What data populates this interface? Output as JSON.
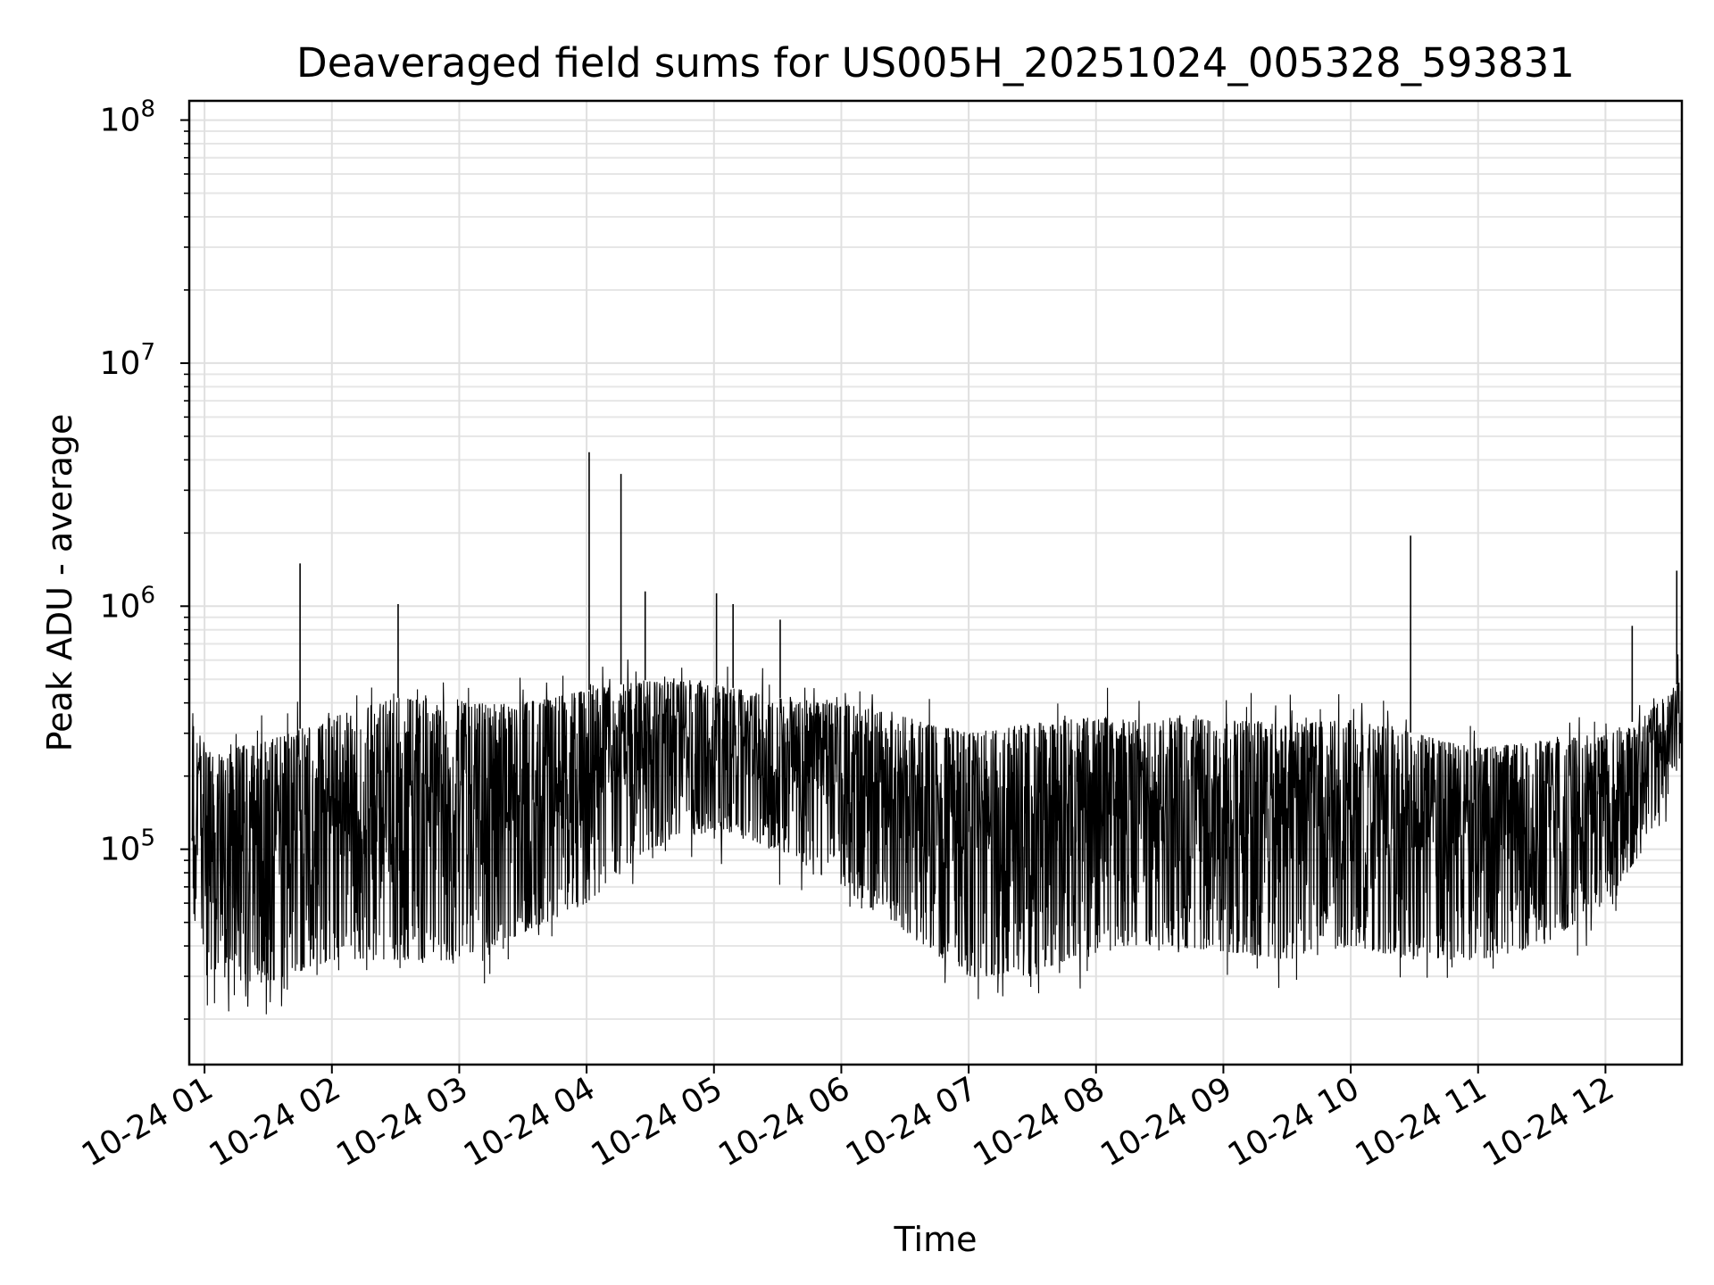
{
  "chart_data": {
    "type": "line",
    "title": "Deaveraged field sums for US005H_20251024_005328_593831",
    "xlabel": "Time",
    "ylabel": "Peak ADU - average",
    "yscale": "log",
    "ylim": [
      13000,
      120000000
    ],
    "xlim_hours": [
      0.88,
      12.6
    ],
    "grid": true,
    "line_color": "#000000",
    "x_ticks": [
      {
        "hour": 1,
        "label": "10-24 01"
      },
      {
        "hour": 2,
        "label": "10-24 02"
      },
      {
        "hour": 3,
        "label": "10-24 03"
      },
      {
        "hour": 4,
        "label": "10-24 04"
      },
      {
        "hour": 5,
        "label": "10-24 05"
      },
      {
        "hour": 6,
        "label": "10-24 06"
      },
      {
        "hour": 7,
        "label": "10-24 07"
      },
      {
        "hour": 8,
        "label": "10-24 08"
      },
      {
        "hour": 9,
        "label": "10-24 09"
      },
      {
        "hour": 10,
        "label": "10-24 10"
      },
      {
        "hour": 11,
        "label": "10-24 11"
      },
      {
        "hour": 12,
        "label": "10-24 12"
      }
    ],
    "y_ticks": [
      {
        "value": 100000,
        "base": "10",
        "exp": "5"
      },
      {
        "value": 1000000,
        "base": "10",
        "exp": "6"
      },
      {
        "value": 10000000,
        "base": "10",
        "exp": "7"
      },
      {
        "value": 100000000,
        "base": "10",
        "exp": "8"
      }
    ],
    "envelope": [
      {
        "hour": 0.9,
        "low": 60000,
        "high": 400000
      },
      {
        "hour": 1.0,
        "low": 30000,
        "high": 250000
      },
      {
        "hour": 1.5,
        "low": 28000,
        "high": 280000
      },
      {
        "hour": 2.0,
        "low": 35000,
        "high": 350000
      },
      {
        "hour": 2.5,
        "low": 35000,
        "high": 420000
      },
      {
        "hour": 3.0,
        "low": 35000,
        "high": 400000
      },
      {
        "hour": 3.5,
        "low": 45000,
        "high": 400000
      },
      {
        "hour": 4.0,
        "low": 60000,
        "high": 450000
      },
      {
        "hour": 4.5,
        "low": 100000,
        "high": 500000
      },
      {
        "hour": 5.0,
        "low": 120000,
        "high": 480000
      },
      {
        "hour": 5.5,
        "low": 100000,
        "high": 420000
      },
      {
        "hour": 6.0,
        "low": 70000,
        "high": 400000
      },
      {
        "hour": 6.5,
        "low": 45000,
        "high": 350000
      },
      {
        "hour": 7.0,
        "low": 30000,
        "high": 300000
      },
      {
        "hour": 7.5,
        "low": 30000,
        "high": 330000
      },
      {
        "hour": 8.0,
        "low": 40000,
        "high": 350000
      },
      {
        "hour": 8.5,
        "low": 40000,
        "high": 350000
      },
      {
        "hour": 9.0,
        "low": 38000,
        "high": 340000
      },
      {
        "hour": 9.5,
        "low": 35000,
        "high": 330000
      },
      {
        "hour": 10.0,
        "low": 40000,
        "high": 340000
      },
      {
        "hour": 10.5,
        "low": 35000,
        "high": 300000
      },
      {
        "hour": 11.0,
        "low": 35000,
        "high": 260000
      },
      {
        "hour": 11.5,
        "low": 40000,
        "high": 280000
      },
      {
        "hour": 12.0,
        "low": 60000,
        "high": 300000
      },
      {
        "hour": 12.3,
        "low": 100000,
        "high": 350000
      },
      {
        "hour": 12.6,
        "low": 250000,
        "high": 500000
      }
    ],
    "spikes": [
      {
        "hour": 1.75,
        "value": 1500000
      },
      {
        "hour": 2.52,
        "value": 1020000
      },
      {
        "hour": 4.02,
        "value": 4300000
      },
      {
        "hour": 4.27,
        "value": 3500000
      },
      {
        "hour": 4.46,
        "value": 1150000
      },
      {
        "hour": 5.02,
        "value": 1130000
      },
      {
        "hour": 5.15,
        "value": 1020000
      },
      {
        "hour": 5.52,
        "value": 880000
      },
      {
        "hour": 10.47,
        "value": 1950000
      },
      {
        "hour": 12.21,
        "value": 830000
      },
      {
        "hour": 12.56,
        "value": 1400000
      }
    ]
  }
}
